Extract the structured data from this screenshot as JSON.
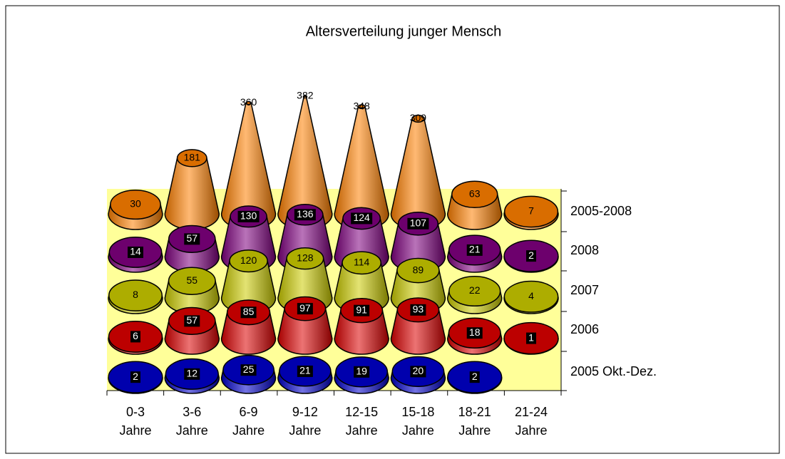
{
  "chart_data": {
    "type": "cone",
    "title": "Altersverteilung junger Mensch",
    "categories": [
      "0-3 Jahre",
      "3-6 Jahre",
      "6-9 Jahre",
      "9-12 Jahre",
      "12-15 Jahre",
      "15-18 Jahre",
      "18-21 Jahre",
      "21-24 Jahre"
    ],
    "series": [
      {
        "name": "2005 Okt.-Dez.",
        "color": "#0000cc",
        "values": [
          2,
          12,
          25,
          21,
          19,
          20,
          2,
          null
        ]
      },
      {
        "name": "2006",
        "color": "#dd0000",
        "values": [
          6,
          57,
          85,
          97,
          91,
          93,
          18,
          1
        ]
      },
      {
        "name": "2007",
        "color": "#cccc00",
        "values": [
          8,
          55,
          120,
          128,
          114,
          89,
          22,
          4
        ]
      },
      {
        "name": "2008",
        "color": "#800080",
        "values": [
          14,
          57,
          130,
          136,
          124,
          107,
          21,
          2
        ]
      },
      {
        "name": "2005-2008",
        "color": "#ff8000",
        "values": [
          30,
          181,
          360,
          382,
          348,
          309,
          63,
          7
        ]
      }
    ]
  }
}
